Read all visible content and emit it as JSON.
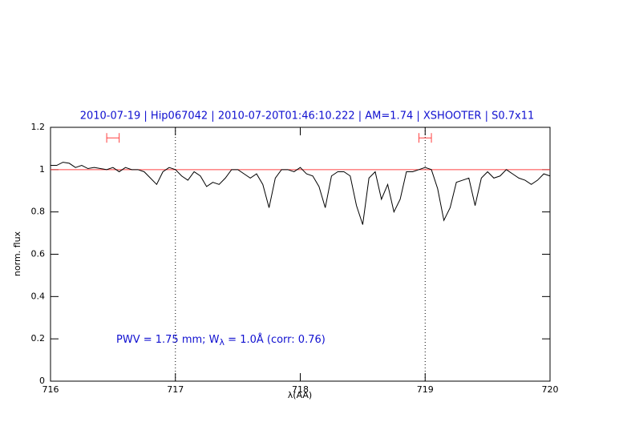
{
  "chart_data": {
    "type": "line",
    "title": "2010-07-19 | Hip067042 | 2010-07-20T01:46:10.222 | AM=1.74 | XSHOOTER | S0.7x11",
    "x_label": "λ(AA)",
    "y_label": "norm. flux",
    "annotation": {
      "before": "PWV = 1.75 mm; W",
      "subscript": "λ",
      "after": " = 1.0Å (corr: 0.76)"
    },
    "xlim": [
      716,
      720
    ],
    "ylim": [
      0,
      1.2
    ],
    "xticks": [
      716,
      717,
      718,
      719,
      720
    ],
    "yticks": [
      0,
      0.2,
      0.4,
      0.6,
      0.8,
      1,
      1.2
    ],
    "x": [
      716.0,
      716.05,
      716.1,
      716.15,
      716.2,
      716.25,
      716.3,
      716.35,
      716.4,
      716.45,
      716.5,
      716.55,
      716.6,
      716.65,
      716.7,
      716.75,
      716.8,
      716.85,
      716.9,
      716.95,
      717.0,
      717.05,
      717.1,
      717.15,
      717.2,
      717.25,
      717.3,
      717.35,
      717.4,
      717.45,
      717.5,
      717.55,
      717.6,
      717.65,
      717.7,
      717.75,
      717.8,
      717.85,
      717.9,
      717.95,
      718.0,
      718.05,
      718.1,
      718.15,
      718.2,
      718.25,
      718.3,
      718.35,
      718.4,
      718.45,
      718.5,
      718.55,
      718.6,
      718.65,
      718.7,
      718.75,
      718.8,
      718.85,
      718.9,
      718.95,
      719.0,
      719.05,
      719.1,
      719.15,
      719.2,
      719.25,
      719.3,
      719.35,
      719.4,
      719.45,
      719.5,
      719.55,
      719.6,
      719.65,
      719.7,
      719.75,
      719.8,
      719.85,
      719.9,
      719.95,
      720.0
    ],
    "series": [
      {
        "color": "#000000",
        "values": [
          1.02,
          1.02,
          1.035,
          1.03,
          1.01,
          1.02,
          1.005,
          1.01,
          1.005,
          1.0,
          1.01,
          0.99,
          1.01,
          1.0,
          1.0,
          0.99,
          0.96,
          0.93,
          0.99,
          1.01,
          1.0,
          0.97,
          0.95,
          0.99,
          0.97,
          0.92,
          0.94,
          0.93,
          0.96,
          1.0,
          1.0,
          0.98,
          0.96,
          0.98,
          0.93,
          0.82,
          0.96,
          1.0,
          1.0,
          0.99,
          1.01,
          0.98,
          0.97,
          0.92,
          0.82,
          0.97,
          0.99,
          0.99,
          0.97,
          0.83,
          0.74,
          0.96,
          0.99,
          0.86,
          0.93,
          0.8,
          0.86,
          0.99,
          0.99,
          1.0,
          1.01,
          1.0,
          0.91,
          0.76,
          0.82,
          0.94,
          0.95,
          0.96,
          0.83,
          0.96,
          0.99,
          0.96,
          0.97,
          1.0,
          0.98,
          0.96,
          0.95,
          0.93,
          0.95,
          0.98,
          0.97
        ]
      }
    ],
    "hline": {
      "value": 1,
      "color": "#ff4040"
    },
    "vlines": [
      717,
      719
    ],
    "intervals": [
      {
        "range": [
          716.45,
          716.55
        ],
        "y": 1.15
      },
      {
        "range": [
          718.95,
          719.05
        ],
        "y": 1.15
      }
    ],
    "interval_color": "#ff4040"
  }
}
